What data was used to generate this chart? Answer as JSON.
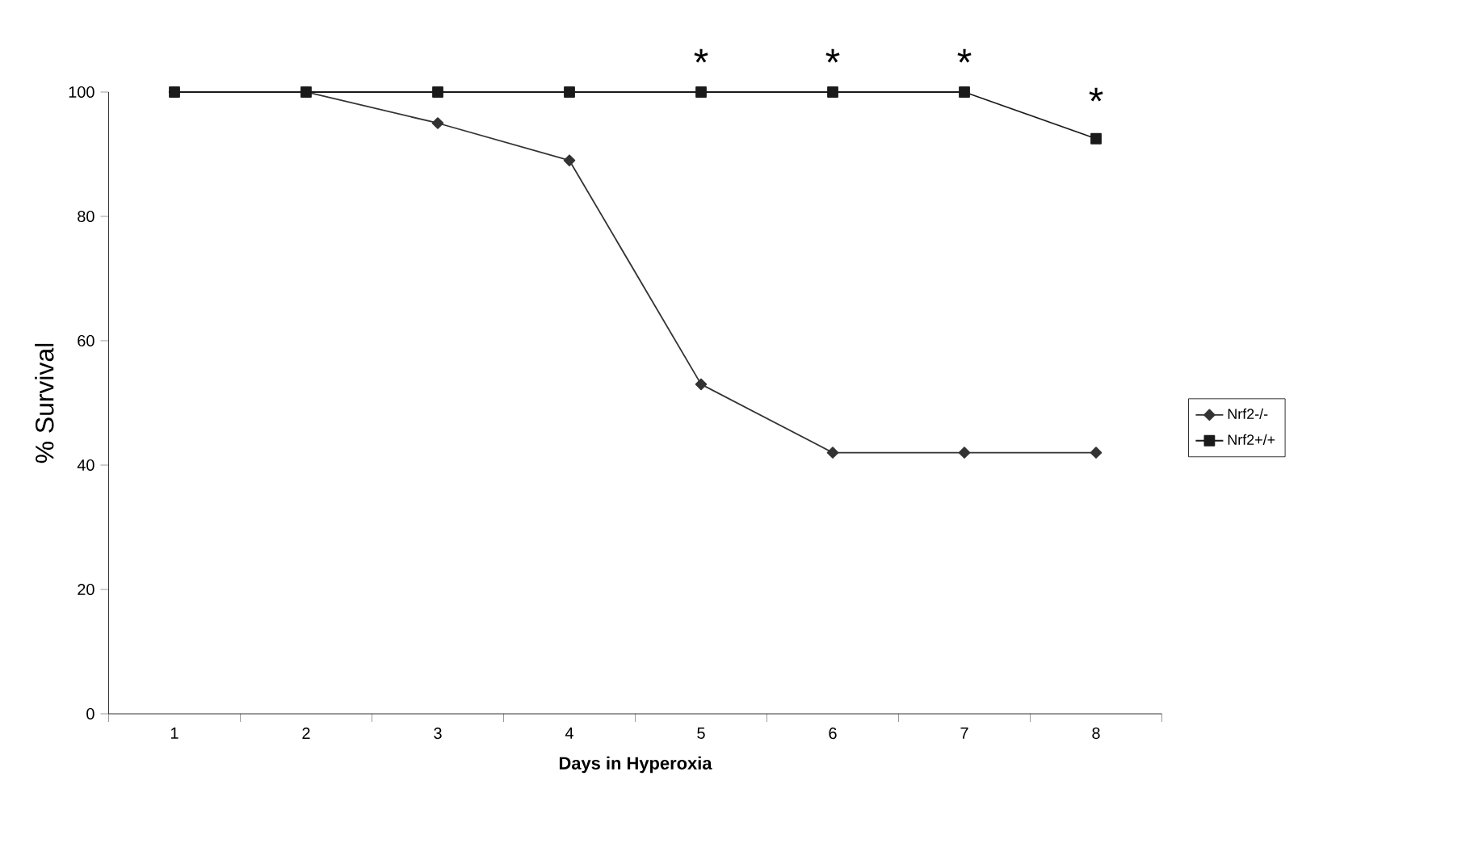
{
  "chart_data": {
    "type": "line",
    "xlabel": "Days in Hyperoxia",
    "ylabel": "% Survival",
    "categories": [
      "1",
      "2",
      "3",
      "4",
      "5",
      "6",
      "7",
      "8"
    ],
    "series": [
      {
        "name": "Nrf2-/-",
        "color": "#333333",
        "marker": "diamond",
        "values": [
          100,
          100,
          95,
          89,
          53,
          42,
          42,
          42
        ]
      },
      {
        "name": "Nrf2+/+",
        "color": "#1a1a1a",
        "marker": "square",
        "values": [
          100,
          100,
          100,
          100,
          100,
          100,
          100,
          92.5
        ]
      }
    ],
    "ylim": [
      0,
      100
    ],
    "yticks": [
      0,
      20,
      40,
      60,
      80,
      100
    ],
    "legend": "right",
    "line_style": "solid",
    "grid": false,
    "annotations": [
      "*",
      "*",
      "*",
      "*"
    ]
  }
}
